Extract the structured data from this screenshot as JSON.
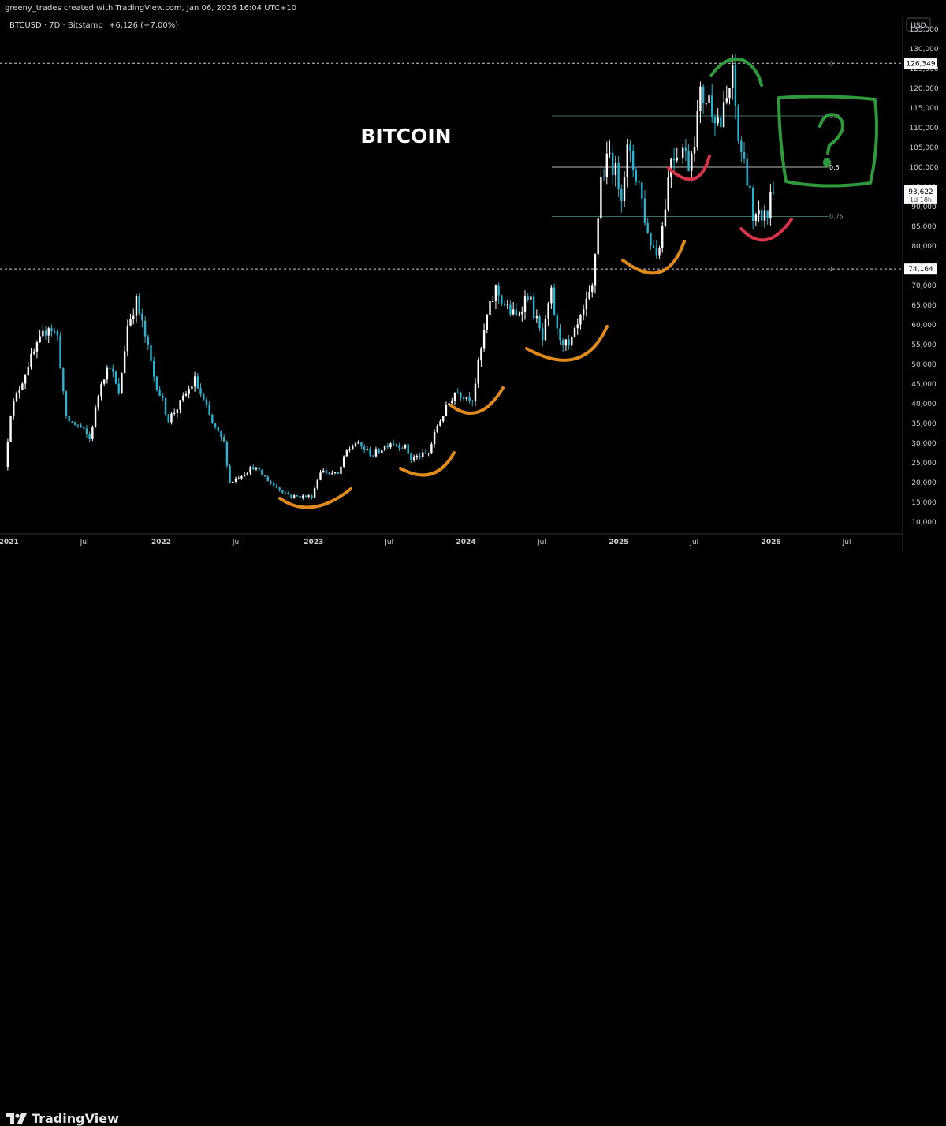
{
  "header": {
    "credit": "greeny_trades created with TradingView.com, Jan 06, 2026 16:04 UTC+10",
    "legend": "BTCUSD · 7D · Bitstamp",
    "change": "+6,126 (+7.00%)"
  },
  "footer": {
    "brand": "TradingView"
  },
  "colors": {
    "up": "#ffffff",
    "down": "#26b5d2",
    "orange": "#e08a1e",
    "red": "#d9344a",
    "green": "#2f9a3c",
    "level": "#9aa0a6"
  },
  "chart_data": {
    "type": "candlestick",
    "title": "BITCOIN",
    "symbol": "BTCUSD",
    "interval": "7D",
    "exchange": "Bitstamp",
    "currency": "USD",
    "ylim": [
      7000,
      138000
    ],
    "y_ticks": [
      10000,
      15000,
      20000,
      25000,
      30000,
      35000,
      40000,
      45000,
      50000,
      55000,
      60000,
      65000,
      70000,
      75000,
      80000,
      85000,
      90000,
      95000,
      100000,
      105000,
      110000,
      115000,
      120000,
      125000,
      130000,
      135000
    ],
    "x_ticks": [
      {
        "label": "2021",
        "date": "2021-01-01"
      },
      {
        "label": "Jul",
        "date": "2021-07-01"
      },
      {
        "label": "2022",
        "date": "2022-01-01"
      },
      {
        "label": "Jul",
        "date": "2022-07-01"
      },
      {
        "label": "2023",
        "date": "2023-01-01"
      },
      {
        "label": "Jul",
        "date": "2023-07-01"
      },
      {
        "label": "2024",
        "date": "2024-01-01"
      },
      {
        "label": "Jul",
        "date": "2024-07-01"
      },
      {
        "label": "2025",
        "date": "2025-01-01"
      },
      {
        "label": "Jul",
        "date": "2025-07-01"
      },
      {
        "label": "2026",
        "date": "2026-01-01"
      },
      {
        "label": "Jul",
        "date": "2026-07-01"
      }
    ],
    "x_range": [
      "2020-12-26",
      "2026-11-12"
    ],
    "price_anchors": [
      [
        "2020-12-26",
        24000
      ],
      [
        "2021-01-09",
        38000
      ],
      [
        "2021-02-20",
        50000
      ],
      [
        "2021-04-10",
        60000
      ],
      [
        "2021-05-01",
        57000
      ],
      [
        "2021-05-22",
        36000
      ],
      [
        "2021-06-26",
        34000
      ],
      [
        "2021-07-17",
        31000
      ],
      [
        "2021-08-14",
        46000
      ],
      [
        "2021-09-04",
        50000
      ],
      [
        "2021-09-25",
        42000
      ],
      [
        "2021-10-16",
        60000
      ],
      [
        "2021-11-06",
        66000
      ],
      [
        "2021-11-27",
        57000
      ],
      [
        "2021-12-18",
        47000
      ],
      [
        "2022-01-22",
        36000
      ],
      [
        "2022-02-19",
        40000
      ],
      [
        "2022-03-26",
        46000
      ],
      [
        "2022-05-07",
        35000
      ],
      [
        "2022-06-04",
        30000
      ],
      [
        "2022-06-18",
        20000
      ],
      [
        "2022-08-13",
        24000
      ],
      [
        "2022-10-01",
        19300
      ],
      [
        "2022-11-12",
        16500
      ],
      [
        "2022-12-31",
        16500
      ],
      [
        "2023-01-21",
        23000
      ],
      [
        "2023-03-04",
        22000
      ],
      [
        "2023-03-25",
        28000
      ],
      [
        "2023-04-15",
        30000
      ],
      [
        "2023-05-27",
        27000
      ],
      [
        "2023-07-08",
        30300
      ],
      [
        "2023-08-12",
        29000
      ],
      [
        "2023-08-26",
        26000
      ],
      [
        "2023-10-07",
        27500
      ],
      [
        "2023-10-28",
        34500
      ],
      [
        "2023-12-09",
        43000
      ],
      [
        "2024-01-20",
        41500
      ],
      [
        "2024-02-24",
        62000
      ],
      [
        "2024-03-16",
        69000
      ],
      [
        "2024-04-13",
        64000
      ],
      [
        "2024-05-04",
        62000
      ],
      [
        "2024-06-01",
        68000
      ],
      [
        "2024-07-06",
        56000
      ],
      [
        "2024-07-27",
        68000
      ],
      [
        "2024-08-10",
        58000
      ],
      [
        "2024-09-07",
        54000
      ],
      [
        "2024-10-12",
        63000
      ],
      [
        "2024-11-02",
        69000
      ],
      [
        "2024-11-23",
        97000
      ],
      [
        "2024-12-14",
        103000
      ],
      [
        "2025-01-11",
        94000
      ],
      [
        "2025-01-25",
        104000
      ],
      [
        "2025-02-22",
        96000
      ],
      [
        "2025-03-15",
        83000
      ],
      [
        "2025-04-05",
        78000
      ],
      [
        "2025-04-19",
        85000
      ],
      [
        "2025-05-10",
        103000
      ],
      [
        "2025-06-07",
        105000
      ],
      [
        "2025-06-21",
        101000
      ],
      [
        "2025-07-05",
        108000
      ],
      [
        "2025-07-19",
        118000
      ],
      [
        "2025-08-09",
        117000
      ],
      [
        "2025-09-06",
        111000
      ],
      [
        "2025-10-04",
        123000
      ],
      [
        "2025-10-18",
        107000
      ],
      [
        "2025-11-15",
        95000
      ],
      [
        "2025-11-22",
        85000
      ],
      [
        "2025-12-13",
        88000
      ],
      [
        "2025-12-27",
        87500
      ],
      [
        "2026-01-03",
        93622
      ]
    ],
    "levels": [
      {
        "label": "0",
        "price": 126349,
        "tag": "126,349",
        "style": "dashed"
      },
      {
        "label": "0.2",
        "price": 113000,
        "style": "solid"
      },
      {
        "label": "0.5",
        "price": 100000,
        "style": "solid"
      },
      {
        "label": "0.75",
        "price": 87500,
        "style": "solid"
      },
      {
        "label": "1",
        "price": 74164,
        "tag": "74,164",
        "style": "dashed"
      }
    ],
    "last_price": {
      "value": 93622,
      "label": "93,622",
      "countdown": "1d 18h"
    }
  }
}
